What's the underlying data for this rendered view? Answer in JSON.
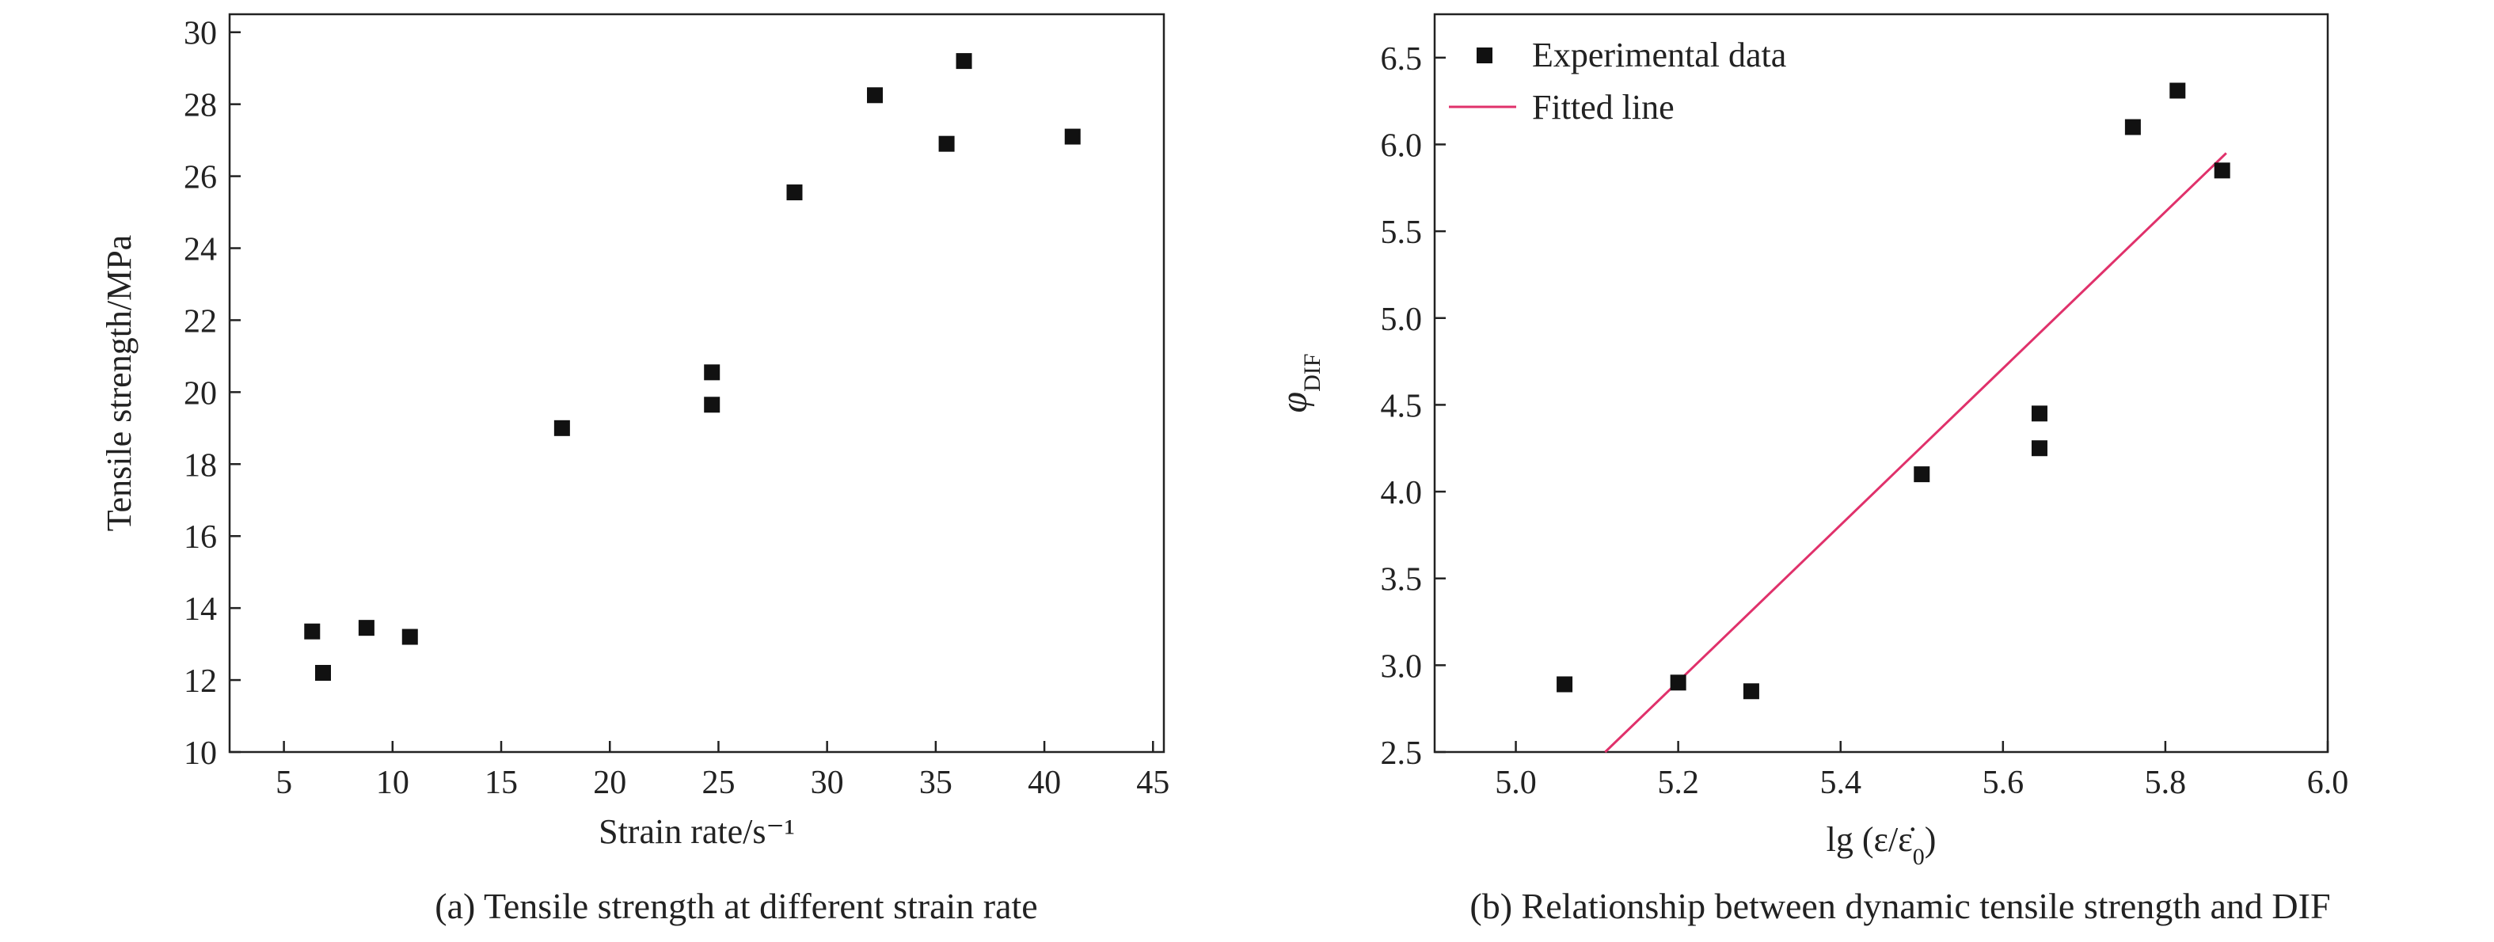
{
  "captions": {
    "a": "(a) Tensile strength at different strain rate",
    "b": "(b) Relationship between dynamic tensile strength and DIF"
  },
  "colors": {
    "marker": "#111111",
    "fit_line": "#e0316b",
    "axis": "#222222"
  },
  "chart_data": [
    {
      "type": "scatter",
      "xlabel": "Strain rate/s⁻¹",
      "ylabel": "Tensile strength/MPa",
      "xlim": [
        2.5,
        45.5
      ],
      "ylim": [
        10,
        30.5
      ],
      "xticks": [
        5,
        10,
        15,
        20,
        25,
        30,
        35,
        40,
        45
      ],
      "yticks": [
        10,
        12,
        14,
        16,
        18,
        20,
        22,
        24,
        26,
        28,
        30
      ],
      "grid": false,
      "points": [
        {
          "x": 6.3,
          "y": 13.35
        },
        {
          "x": 6.8,
          "y": 12.2
        },
        {
          "x": 8.8,
          "y": 13.45
        },
        {
          "x": 10.8,
          "y": 13.2
        },
        {
          "x": 17.8,
          "y": 19.0
        },
        {
          "x": 24.7,
          "y": 20.55
        },
        {
          "x": 24.7,
          "y": 19.65
        },
        {
          "x": 28.5,
          "y": 25.55
        },
        {
          "x": 32.2,
          "y": 28.25
        },
        {
          "x": 35.5,
          "y": 26.9
        },
        {
          "x": 36.3,
          "y": 29.2
        },
        {
          "x": 41.3,
          "y": 27.1
        }
      ]
    },
    {
      "type": "scatter",
      "xlabel": "lg (ε/ε̇",
      "xlabel_sub": "0",
      "xlabel_close": ")",
      "ylabel": "φ",
      "ylabel_sub": "DIF",
      "xlim": [
        4.9,
        6.0
      ],
      "ylim": [
        2.5,
        6.75
      ],
      "xticks": [
        "5.0",
        "5.2",
        "5.4",
        "5.6",
        "5.8",
        "6.0"
      ],
      "yticks": [
        "2.5",
        "3.0",
        "3.5",
        "4.0",
        "4.5",
        "5.0",
        "5.5",
        "6.0",
        "6.5"
      ],
      "grid": false,
      "legend": "top-left",
      "series": [
        {
          "name": "Experimental data",
          "kind": "markers",
          "points": [
            {
              "x": 5.06,
              "y": 2.89
            },
            {
              "x": 5.2,
              "y": 2.9
            },
            {
              "x": 5.29,
              "y": 2.85
            },
            {
              "x": 5.5,
              "y": 4.1
            },
            {
              "x": 5.645,
              "y": 4.45
            },
            {
              "x": 5.645,
              "y": 4.25
            },
            {
              "x": 5.76,
              "y": 6.1
            },
            {
              "x": 5.815,
              "y": 6.31
            },
            {
              "x": 5.87,
              "y": 5.85
            }
          ]
        },
        {
          "name": "Fitted line",
          "kind": "line",
          "points": [
            {
              "x": 5.11,
              "y": 2.5
            },
            {
              "x": 5.875,
              "y": 5.95
            }
          ]
        }
      ]
    }
  ]
}
